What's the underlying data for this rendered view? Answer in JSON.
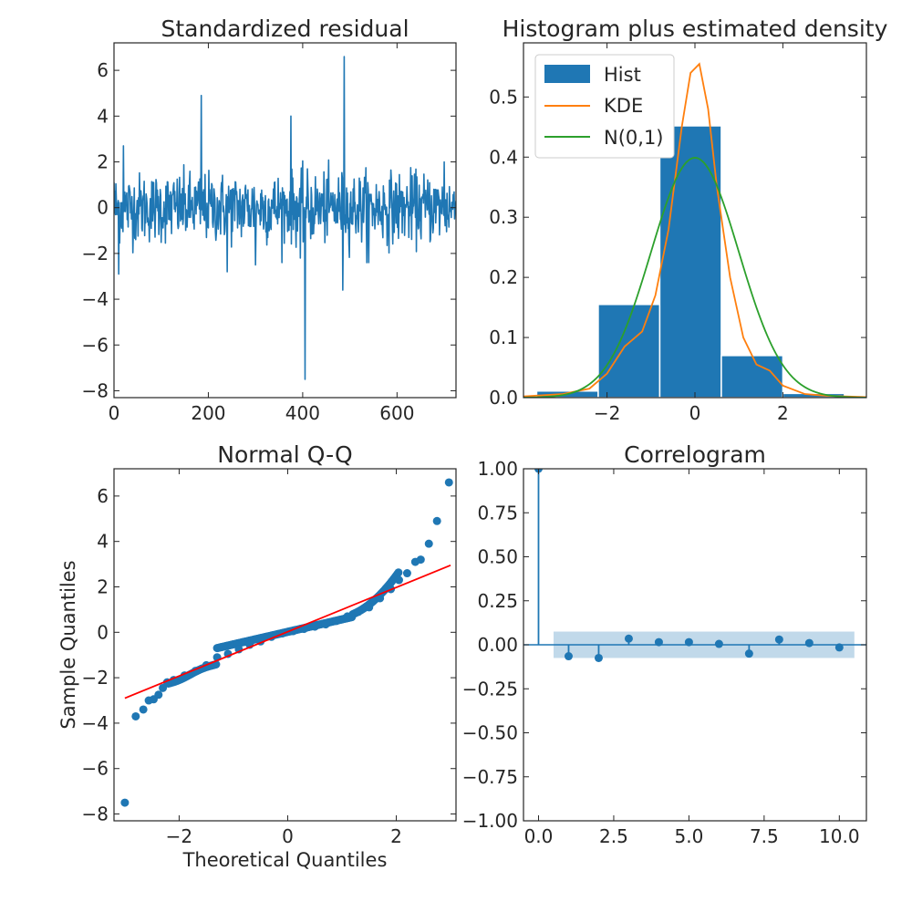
{
  "chart_data": [
    {
      "type": "line",
      "title": "Standardized residual",
      "xlabel": "",
      "ylabel": "",
      "xlim": [
        0,
        725
      ],
      "ylim": [
        -8.3,
        7.2
      ],
      "xticks": [
        0,
        200,
        400,
        600
      ],
      "yticks": [
        -8,
        -6,
        -4,
        -2,
        0,
        2,
        4,
        6
      ],
      "color": "#1f77b4",
      "n_points": 725,
      "key_points": [
        {
          "x": 0,
          "y": 1.1
        },
        {
          "x": 10,
          "y": -2.9
        },
        {
          "x": 20,
          "y": 2.7
        },
        {
          "x": 185,
          "y": 4.9
        },
        {
          "x": 240,
          "y": -2.8
        },
        {
          "x": 300,
          "y": -2.5
        },
        {
          "x": 375,
          "y": 4.0
        },
        {
          "x": 395,
          "y": -2.2
        },
        {
          "x": 405,
          "y": -7.5
        },
        {
          "x": 485,
          "y": -3.6
        },
        {
          "x": 488,
          "y": 6.6
        },
        {
          "x": 540,
          "y": -2.4
        },
        {
          "x": 700,
          "y": 2.0
        },
        {
          "x": 725,
          "y": 0.3
        }
      ]
    },
    {
      "type": "bar",
      "title": "Histogram plus estimated density",
      "xlim": [
        -3.9,
        3.9
      ],
      "ylim": [
        0,
        0.59
      ],
      "xticks": [
        -2,
        0,
        2
      ],
      "yticks": [
        0.0,
        0.1,
        0.2,
        0.3,
        0.4,
        0.5
      ],
      "legend_position": "upper left",
      "bins": [
        {
          "x0": -3.6,
          "x1": -2.2,
          "value": 0.011
        },
        {
          "x0": -2.2,
          "x1": -0.8,
          "value": 0.155
        },
        {
          "x0": -0.8,
          "x1": 0.6,
          "value": 0.452
        },
        {
          "x0": 0.6,
          "x1": 2.0,
          "value": 0.07
        },
        {
          "x0": 2.0,
          "x1": 3.4,
          "value": 0.007
        }
      ],
      "series": [
        {
          "name": "Hist",
          "color": "#1f77b4"
        },
        {
          "name": "KDE",
          "color": "#ff7f0e",
          "points": [
            [
              -3.9,
              0.002
            ],
            [
              -3.0,
              0.006
            ],
            [
              -2.4,
              0.015
            ],
            [
              -2.0,
              0.04
            ],
            [
              -1.6,
              0.085
            ],
            [
              -1.2,
              0.11
            ],
            [
              -0.9,
              0.17
            ],
            [
              -0.6,
              0.28
            ],
            [
              -0.3,
              0.45
            ],
            [
              -0.1,
              0.54
            ],
            [
              0.1,
              0.555
            ],
            [
              0.3,
              0.48
            ],
            [
              0.5,
              0.35
            ],
            [
              0.8,
              0.2
            ],
            [
              1.1,
              0.1
            ],
            [
              1.4,
              0.055
            ],
            [
              1.7,
              0.045
            ],
            [
              2.0,
              0.02
            ],
            [
              2.5,
              0.006
            ],
            [
              3.0,
              0.003
            ],
            [
              3.9,
              0.001
            ]
          ]
        },
        {
          "name": "N(0,1)",
          "color": "#2ca02c",
          "distribution": "normal",
          "mean": 0,
          "std": 1
        }
      ]
    },
    {
      "type": "scatter",
      "title": "Normal Q-Q",
      "xlabel": "Theoretical Quantiles",
      "ylabel": "Sample Quantiles",
      "xlim": [
        -3.2,
        3.1
      ],
      "ylim": [
        -8.3,
        7.2
      ],
      "xticks": [
        -2,
        0,
        2
      ],
      "yticks": [
        -8,
        -6,
        -4,
        -2,
        0,
        2,
        4,
        6
      ],
      "marker_color": "#1f77b4",
      "line_color": "#ff0000",
      "reference_line": [
        [
          -3.0,
          -2.9
        ],
        [
          3.0,
          2.95
        ]
      ],
      "points": [
        [
          -3.0,
          -7.5
        ],
        [
          -2.8,
          -3.7
        ],
        [
          -2.66,
          -3.4
        ],
        [
          -2.56,
          -3.0
        ],
        [
          -2.47,
          -2.95
        ],
        [
          -2.38,
          -2.75
        ],
        [
          -2.3,
          -2.45
        ],
        [
          -2.22,
          -2.2
        ],
        [
          -2.1,
          -2.1
        ],
        [
          -1.9,
          -1.9
        ],
        [
          -1.7,
          -1.7
        ],
        [
          -1.5,
          -1.45
        ],
        [
          -1.3,
          -1.1
        ],
        [
          -1.1,
          -0.95
        ],
        [
          -0.9,
          -0.75
        ],
        [
          -0.7,
          -0.55
        ],
        [
          -0.5,
          -0.4
        ],
        [
          -0.3,
          -0.2
        ],
        [
          -0.1,
          -0.05
        ],
        [
          0.1,
          0.05
        ],
        [
          0.3,
          0.15
        ],
        [
          0.5,
          0.25
        ],
        [
          0.7,
          0.35
        ],
        [
          0.9,
          0.5
        ],
        [
          1.1,
          0.7
        ],
        [
          1.3,
          0.9
        ],
        [
          1.5,
          1.1
        ],
        [
          1.7,
          1.5
        ],
        [
          1.9,
          1.9
        ],
        [
          2.05,
          2.3
        ],
        [
          2.2,
          2.6
        ],
        [
          2.35,
          3.1
        ],
        [
          2.45,
          3.2
        ],
        [
          2.6,
          3.9
        ],
        [
          2.75,
          4.9
        ],
        [
          2.97,
          6.6
        ]
      ]
    },
    {
      "type": "stem",
      "title": "Correlogram",
      "xlim": [
        -0.5,
        10.9
      ],
      "ylim": [
        -1.0,
        1.0
      ],
      "xticks": [
        "0.0",
        "2.5",
        "5.0",
        "7.5",
        "10.0"
      ],
      "yticks": [
        "−1.00",
        "−0.75",
        "−0.50",
        "−0.25",
        "0.00",
        "0.25",
        "0.50",
        "0.75",
        "1.00"
      ],
      "color": "#1f77b4",
      "confidence_band": [
        -0.075,
        0.075
      ],
      "band_x": [
        0.5,
        10.5
      ],
      "lags": [
        0,
        1,
        2,
        3,
        4,
        5,
        6,
        7,
        8,
        9,
        10
      ],
      "values": [
        1.0,
        -0.065,
        -0.075,
        0.035,
        0.015,
        0.015,
        0.005,
        -0.05,
        0.03,
        0.01,
        -0.015
      ]
    }
  ]
}
